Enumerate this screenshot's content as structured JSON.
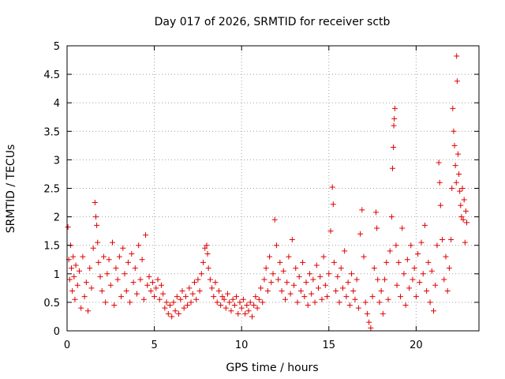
{
  "chart_data": {
    "type": "scatter",
    "title": "Day 017 of 2026, SRMTID for receiver sctb",
    "xlabel": "GPS time / hours",
    "ylabel": "SRMTID / TECUs",
    "xlim": [
      0,
      23.6
    ],
    "ylim": [
      0,
      5
    ],
    "x_ticks": [
      0,
      5,
      10,
      15,
      20
    ],
    "x_tick_labels": [
      "0",
      "5",
      "10",
      "15",
      "20"
    ],
    "y_ticks": [
      0,
      0.5,
      1,
      1.5,
      2,
      2.5,
      3,
      3.5,
      4,
      4.5,
      5
    ],
    "y_tick_labels": [
      "0",
      "0.5",
      "1",
      "1.5",
      "2",
      "2.5",
      "3",
      "3.5",
      "4",
      "4.5",
      "5"
    ],
    "grid": true,
    "marker": "+",
    "marker_color": "#e00000",
    "series": [
      {
        "name": "SRMTID",
        "points": [
          [
            0.05,
            1.82
          ],
          [
            0.1,
            1.25
          ],
          [
            0.15,
            0.9
          ],
          [
            0.2,
            1.5
          ],
          [
            0.25,
            1.1
          ],
          [
            0.3,
            0.7
          ],
          [
            0.35,
            1.3
          ],
          [
            0.4,
            0.95
          ],
          [
            0.45,
            0.55
          ],
          [
            0.5,
            1.15
          ],
          [
            0.6,
            0.8
          ],
          [
            0.7,
            1.05
          ],
          [
            0.8,
            0.4
          ],
          [
            0.9,
            1.3
          ],
          [
            1.0,
            0.6
          ],
          [
            1.1,
            0.85
          ],
          [
            1.2,
            0.35
          ],
          [
            1.3,
            1.1
          ],
          [
            1.4,
            0.75
          ],
          [
            1.5,
            1.45
          ],
          [
            1.6,
            2.25
          ],
          [
            1.65,
            2.0
          ],
          [
            1.7,
            1.85
          ],
          [
            1.75,
            1.55
          ],
          [
            1.8,
            1.2
          ],
          [
            1.9,
            0.95
          ],
          [
            2.0,
            0.7
          ],
          [
            2.1,
            1.3
          ],
          [
            2.2,
            0.5
          ],
          [
            2.3,
            1.0
          ],
          [
            2.4,
            1.25
          ],
          [
            2.5,
            0.8
          ],
          [
            2.6,
            1.55
          ],
          [
            2.7,
            0.45
          ],
          [
            2.8,
            1.1
          ],
          [
            2.9,
            0.9
          ],
          [
            3.0,
            1.3
          ],
          [
            3.1,
            0.6
          ],
          [
            3.2,
            1.45
          ],
          [
            3.3,
            1.0
          ],
          [
            3.4,
            0.7
          ],
          [
            3.5,
            1.2
          ],
          [
            3.6,
            0.5
          ],
          [
            3.7,
            1.35
          ],
          [
            3.8,
            0.85
          ],
          [
            3.9,
            1.1
          ],
          [
            4.0,
            0.65
          ],
          [
            4.1,
            1.5
          ],
          [
            4.2,
            0.9
          ],
          [
            4.3,
            1.25
          ],
          [
            4.4,
            0.55
          ],
          [
            4.5,
            1.68
          ],
          [
            4.6,
            0.8
          ],
          [
            4.7,
            0.95
          ],
          [
            4.8,
            0.7
          ],
          [
            4.9,
            0.85
          ],
          [
            5.0,
            0.6
          ],
          [
            5.1,
            0.75
          ],
          [
            5.2,
            0.9
          ],
          [
            5.3,
            0.55
          ],
          [
            5.4,
            0.8
          ],
          [
            5.5,
            0.65
          ],
          [
            5.6,
            0.4
          ],
          [
            5.7,
            0.5
          ],
          [
            5.8,
            0.3
          ],
          [
            5.9,
            0.45
          ],
          [
            6.0,
            0.25
          ],
          [
            6.1,
            0.5
          ],
          [
            6.2,
            0.35
          ],
          [
            6.3,
            0.6
          ],
          [
            6.4,
            0.3
          ],
          [
            6.5,
            0.55
          ],
          [
            6.6,
            0.7
          ],
          [
            6.7,
            0.4
          ],
          [
            6.8,
            0.6
          ],
          [
            6.9,
            0.45
          ],
          [
            7.0,
            0.75
          ],
          [
            7.1,
            0.5
          ],
          [
            7.2,
            0.65
          ],
          [
            7.3,
            0.85
          ],
          [
            7.4,
            0.55
          ],
          [
            7.5,
            0.9
          ],
          [
            7.6,
            0.7
          ],
          [
            7.7,
            1.0
          ],
          [
            7.8,
            1.2
          ],
          [
            7.9,
            1.45
          ],
          [
            8.0,
            1.5
          ],
          [
            8.05,
            1.35
          ],
          [
            8.1,
            1.1
          ],
          [
            8.2,
            0.9
          ],
          [
            8.3,
            0.75
          ],
          [
            8.4,
            0.6
          ],
          [
            8.5,
            0.85
          ],
          [
            8.6,
            0.5
          ],
          [
            8.7,
            0.7
          ],
          [
            8.8,
            0.45
          ],
          [
            8.9,
            0.6
          ],
          [
            9.0,
            0.55
          ],
          [
            9.1,
            0.4
          ],
          [
            9.2,
            0.65
          ],
          [
            9.3,
            0.5
          ],
          [
            9.4,
            0.35
          ],
          [
            9.5,
            0.55
          ],
          [
            9.6,
            0.45
          ],
          [
            9.7,
            0.6
          ],
          [
            9.8,
            0.3
          ],
          [
            9.9,
            0.5
          ],
          [
            10.0,
            0.4
          ],
          [
            10.1,
            0.55
          ],
          [
            10.2,
            0.3
          ],
          [
            10.3,
            0.45
          ],
          [
            10.4,
            0.35
          ],
          [
            10.5,
            0.5
          ],
          [
            10.6,
            0.25
          ],
          [
            10.7,
            0.45
          ],
          [
            10.8,
            0.6
          ],
          [
            10.9,
            0.4
          ],
          [
            11.0,
            0.55
          ],
          [
            11.1,
            0.75
          ],
          [
            11.2,
            0.5
          ],
          [
            11.3,
            0.9
          ],
          [
            11.4,
            1.1
          ],
          [
            11.5,
            0.7
          ],
          [
            11.6,
            1.3
          ],
          [
            11.7,
            0.85
          ],
          [
            11.8,
            1.0
          ],
          [
            11.9,
            1.95
          ],
          [
            12.0,
            1.5
          ],
          [
            12.1,
            0.9
          ],
          [
            12.2,
            1.2
          ],
          [
            12.3,
            0.7
          ],
          [
            12.4,
            1.05
          ],
          [
            12.5,
            0.55
          ],
          [
            12.6,
            0.85
          ],
          [
            12.7,
            1.3
          ],
          [
            12.8,
            0.65
          ],
          [
            12.9,
            1.6
          ],
          [
            13.0,
            0.8
          ],
          [
            13.1,
            1.1
          ],
          [
            13.2,
            0.5
          ],
          [
            13.3,
            0.95
          ],
          [
            13.4,
            0.7
          ],
          [
            13.5,
            1.2
          ],
          [
            13.6,
            0.6
          ],
          [
            13.7,
            0.85
          ],
          [
            13.8,
            0.45
          ],
          [
            13.9,
            1.0
          ],
          [
            14.0,
            0.65
          ],
          [
            14.1,
            0.9
          ],
          [
            14.2,
            0.5
          ],
          [
            14.3,
            1.15
          ],
          [
            14.4,
            0.75
          ],
          [
            14.5,
            0.95
          ],
          [
            14.6,
            0.55
          ],
          [
            14.7,
            1.3
          ],
          [
            14.8,
            0.8
          ],
          [
            14.9,
            0.6
          ],
          [
            15.0,
            1.0
          ],
          [
            15.1,
            1.75
          ],
          [
            15.2,
            2.52
          ],
          [
            15.25,
            2.22
          ],
          [
            15.3,
            1.2
          ],
          [
            15.4,
            0.7
          ],
          [
            15.5,
            0.95
          ],
          [
            15.6,
            0.5
          ],
          [
            15.7,
            1.1
          ],
          [
            15.8,
            0.75
          ],
          [
            15.9,
            1.4
          ],
          [
            16.0,
            0.6
          ],
          [
            16.1,
            0.85
          ],
          [
            16.2,
            0.45
          ],
          [
            16.3,
            1.0
          ],
          [
            16.4,
            0.7
          ],
          [
            16.5,
            0.55
          ],
          [
            16.6,
            0.9
          ],
          [
            16.7,
            0.4
          ],
          [
            16.8,
            1.7
          ],
          [
            16.9,
            2.12
          ],
          [
            17.0,
            1.3
          ],
          [
            17.1,
            0.5
          ],
          [
            17.2,
            0.3
          ],
          [
            17.3,
            0.15
          ],
          [
            17.4,
            0.05
          ],
          [
            17.5,
            0.6
          ],
          [
            17.6,
            1.1
          ],
          [
            17.7,
            2.08
          ],
          [
            17.75,
            1.8
          ],
          [
            17.8,
            0.9
          ],
          [
            17.9,
            0.5
          ],
          [
            18.0,
            0.7
          ],
          [
            18.1,
            0.3
          ],
          [
            18.2,
            0.9
          ],
          [
            18.3,
            1.2
          ],
          [
            18.4,
            0.55
          ],
          [
            18.5,
            1.4
          ],
          [
            18.6,
            2.0
          ],
          [
            18.65,
            2.85
          ],
          [
            18.7,
            3.22
          ],
          [
            18.72,
            3.6
          ],
          [
            18.75,
            3.72
          ],
          [
            18.78,
            3.9
          ],
          [
            18.85,
            1.5
          ],
          [
            18.9,
            0.8
          ],
          [
            19.0,
            1.2
          ],
          [
            19.1,
            0.6
          ],
          [
            19.2,
            1.8
          ],
          [
            19.3,
            1.0
          ],
          [
            19.4,
            0.45
          ],
          [
            19.5,
            1.25
          ],
          [
            19.6,
            0.75
          ],
          [
            19.7,
            1.5
          ],
          [
            19.8,
            0.9
          ],
          [
            19.9,
            1.1
          ],
          [
            20.0,
            0.6
          ],
          [
            20.1,
            1.35
          ],
          [
            20.2,
            0.85
          ],
          [
            20.3,
            1.55
          ],
          [
            20.4,
            1.0
          ],
          [
            20.5,
            1.85
          ],
          [
            20.6,
            0.7
          ],
          [
            20.7,
            1.2
          ],
          [
            20.8,
            0.5
          ],
          [
            20.9,
            1.05
          ],
          [
            21.0,
            0.35
          ],
          [
            21.1,
            0.8
          ],
          [
            21.2,
            1.5
          ],
          [
            21.3,
            2.95
          ],
          [
            21.35,
            2.6
          ],
          [
            21.4,
            2.2
          ],
          [
            21.5,
            1.6
          ],
          [
            21.6,
            0.9
          ],
          [
            21.7,
            1.3
          ],
          [
            21.8,
            0.7
          ],
          [
            21.9,
            1.1
          ],
          [
            22.0,
            1.6
          ],
          [
            22.05,
            2.5
          ],
          [
            22.1,
            3.9
          ],
          [
            22.15,
            3.5
          ],
          [
            22.2,
            3.25
          ],
          [
            22.25,
            2.9
          ],
          [
            22.3,
            2.6
          ],
          [
            22.32,
            4.82
          ],
          [
            22.35,
            4.38
          ],
          [
            22.4,
            3.1
          ],
          [
            22.45,
            2.75
          ],
          [
            22.5,
            2.45
          ],
          [
            22.55,
            2.2
          ],
          [
            22.6,
            2.0
          ],
          [
            22.65,
            2.5
          ],
          [
            22.7,
            1.95
          ],
          [
            22.75,
            2.3
          ],
          [
            22.8,
            1.55
          ],
          [
            22.85,
            2.1
          ],
          [
            22.9,
            1.9
          ]
        ]
      }
    ]
  }
}
